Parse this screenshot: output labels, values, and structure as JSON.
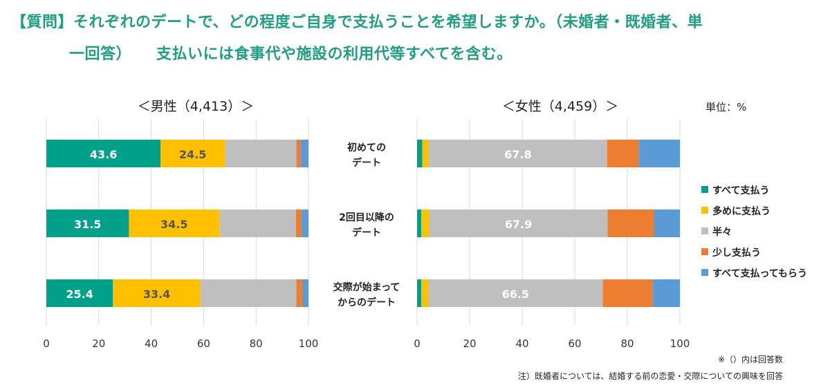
{
  "title": {
    "line1": "【質問】それぞれのデートで、どの程度ご自身で支払うことを希望しますか。（未婚者・既婚者、単",
    "line2a": "一回答）",
    "line2b": "支払いには食事代や施設の利用代等すべてを含む。"
  },
  "unit_label": "単位：%",
  "footnotes": [
    "※（）内は回答数",
    "注）既婚者については、結婚する前の恋愛・交際についての興味を回答"
  ],
  "colors": {
    "all": "#00a08a",
    "more": "#ffc000",
    "half": "#bfbfbf",
    "little": "#ed7d31",
    "none": "#5b9bd5",
    "title": "#1f9e82"
  },
  "chart_data": [
    {
      "type": "bar",
      "orientation": "horizontal-stacked",
      "title": "＜男性（4,413）＞",
      "categories": [
        "初めてのデート",
        "2回目以降のデート",
        "交際が始まってからのデート"
      ],
      "xlim": [
        0,
        100
      ],
      "xticks": [
        "0",
        "20",
        "40",
        "60",
        "80",
        "100"
      ],
      "grid": true,
      "series": [
        {
          "name": "すべて支払う",
          "values": [
            43.6,
            31.5,
            25.4
          ],
          "labeled": true
        },
        {
          "name": "多めに支払う",
          "values": [
            24.5,
            34.5,
            33.4
          ],
          "labeled": true
        },
        {
          "name": "半々",
          "values": [
            27.3,
            29.2,
            36.6
          ],
          "labeled": false
        },
        {
          "name": "少し支払う",
          "values": [
            1.6,
            2.2,
            2.2
          ],
          "labeled": false
        },
        {
          "name": "すべて支払ってもらう",
          "values": [
            3.0,
            2.6,
            2.4
          ],
          "labeled": false
        }
      ]
    },
    {
      "type": "bar",
      "orientation": "horizontal-stacked",
      "title": "＜女性（4,459）＞",
      "categories": [
        "初めてのデート",
        "2回目以降のデート",
        "交際が始まってからのデート"
      ],
      "category_lines": [
        [
          "初めての",
          "デート"
        ],
        [
          "2回目以降の",
          "デート"
        ],
        [
          "交際が始まって",
          "からのデート"
        ]
      ],
      "xlim": [
        0,
        100
      ],
      "xticks": [
        "0",
        "20",
        "40",
        "60",
        "80",
        "100"
      ],
      "grid": true,
      "legend_position": "right",
      "series": [
        {
          "name": "すべて支払う",
          "values": [
            2.0,
            1.6,
            1.6
          ],
          "labeled": false
        },
        {
          "name": "多めに支払う",
          "values": [
            2.5,
            3.0,
            2.6
          ],
          "labeled": false
        },
        {
          "name": "半々",
          "values": [
            67.8,
            67.9,
            66.5
          ],
          "labeled": true
        },
        {
          "name": "少し支払う",
          "values": [
            12.2,
            17.5,
            19.0
          ],
          "labeled": false
        },
        {
          "name": "すべて支払ってもらう",
          "values": [
            15.5,
            10.0,
            10.3
          ],
          "labeled": false
        }
      ]
    }
  ]
}
